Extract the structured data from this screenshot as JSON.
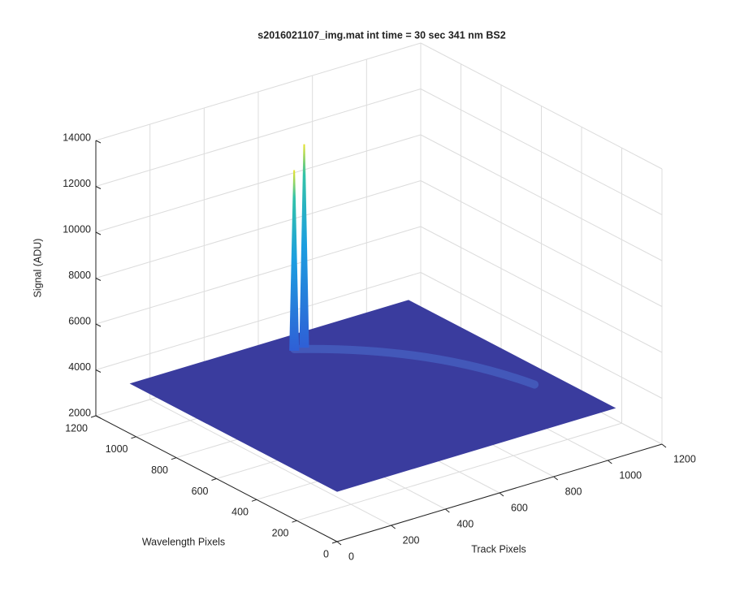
{
  "chart_data": {
    "type": "surface",
    "title": "s2016021107_img.mat int time = 30 sec  341 nm BS2",
    "x_label": "Track Pixels",
    "y_label": "Wavelength Pixels",
    "z_label": "Signal (ADU)",
    "xlim": [
      0,
      1200
    ],
    "ylim": [
      0,
      1200
    ],
    "zlim": [
      2000,
      14000
    ],
    "xticks": [
      0,
      200,
      400,
      600,
      800,
      1000,
      1200
    ],
    "yticks": [
      0,
      200,
      400,
      600,
      800,
      1000,
      1200
    ],
    "zticks": [
      2000,
      4000,
      6000,
      8000,
      10000,
      12000,
      14000
    ],
    "grid": true,
    "surface_extent": [
      1024,
      1024
    ],
    "base_level": 4200,
    "color": "#3a3c9e",
    "peaks": {
      "x": [
        538,
        575
      ],
      "y": [
        938,
        938
      ],
      "z": [
        12000,
        13000
      ]
    }
  }
}
